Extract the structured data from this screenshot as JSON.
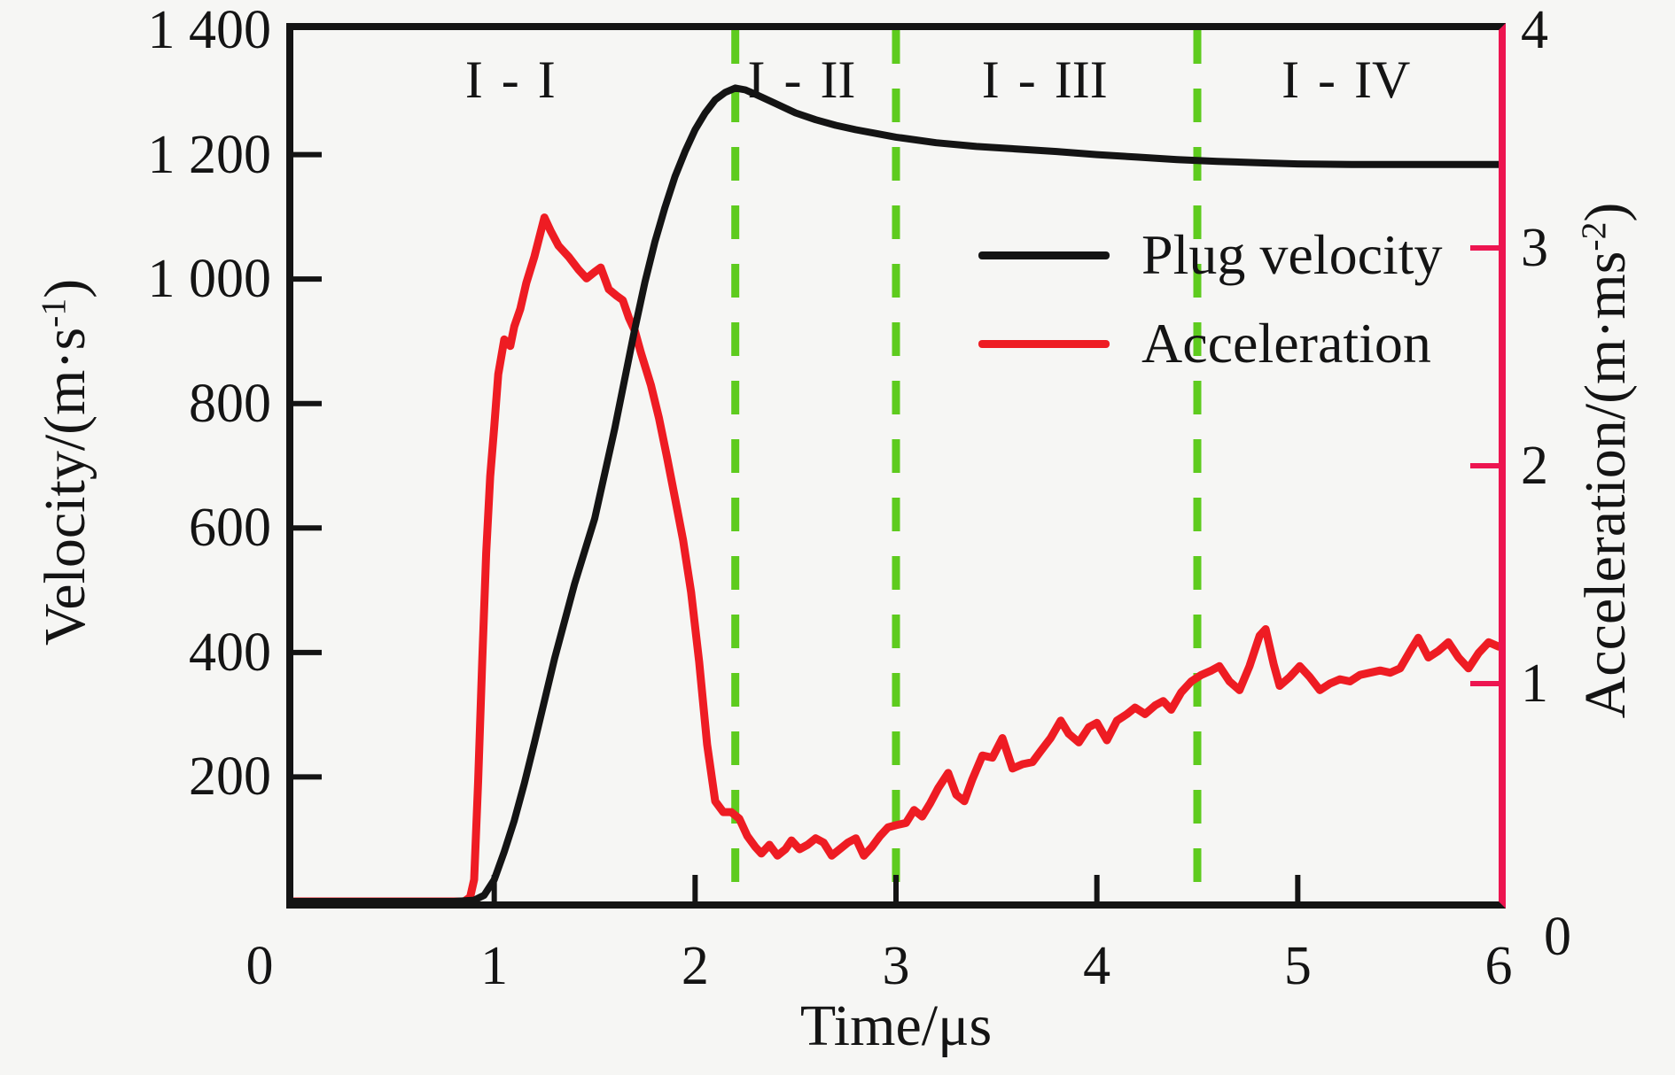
{
  "chart_data": {
    "type": "line",
    "title": "",
    "xlabel": "Time/μs",
    "ylabel_left": {
      "prefix": "Velocity/(m·s",
      "sup": "-1",
      "suffix": ")"
    },
    "ylabel_right": {
      "prefix": "Acceleration/(m·ms",
      "sup": "-2",
      "suffix": ")"
    },
    "x_range": [
      0,
      6
    ],
    "y_left_range": [
      0,
      1400
    ],
    "y_right_range": [
      0,
      4
    ],
    "grid": false,
    "legend_position": "upper right inside",
    "x_ticks": [
      {
        "v": 0,
        "label": "0",
        "dx": -38
      },
      {
        "v": 1,
        "label": "1"
      },
      {
        "v": 2,
        "label": "2"
      },
      {
        "v": 3,
        "label": "3"
      },
      {
        "v": 4,
        "label": "4"
      },
      {
        "v": 5,
        "label": "5"
      },
      {
        "v": 6,
        "label": "6"
      }
    ],
    "x_ticks_inner": [
      1,
      2,
      3,
      4,
      5
    ],
    "y_left_ticks": [
      {
        "v": 1400,
        "label": "1 400"
      },
      {
        "v": 1200,
        "label": "1 200"
      },
      {
        "v": 1000,
        "label": "1 000"
      },
      {
        "v": 800,
        "label": "800"
      },
      {
        "v": 600,
        "label": "600"
      },
      {
        "v": 400,
        "label": "400"
      },
      {
        "v": 200,
        "label": "200"
      }
    ],
    "y_left_tick_values_inner": [
      1200,
      1000,
      800,
      600,
      400,
      200
    ],
    "y_right_ticks": [
      {
        "v": 4,
        "label": "4"
      },
      {
        "v": 3,
        "label": "3"
      },
      {
        "v": 2,
        "label": "2"
      },
      {
        "v": 1,
        "label": "1"
      },
      {
        "v": 0,
        "label": "0",
        "dy": 40,
        "dx": 26
      }
    ],
    "y_right_tick_values_inner": [
      3,
      2,
      1
    ],
    "dashed_vlines": [
      2.2,
      3.0,
      4.5
    ],
    "region_labels": [
      {
        "label": "I - I",
        "t": 1.08
      },
      {
        "label": "I - II",
        "t": 2.53
      },
      {
        "label": "I - III",
        "t": 3.74
      },
      {
        "label": "I - IV",
        "t": 5.24
      }
    ],
    "legend": [
      {
        "label": "Plug velocity",
        "color": "#141414"
      },
      {
        "label": "Acceleration",
        "color": "#ee1c23"
      }
    ],
    "colors": {
      "velocity": "#141414",
      "acceleration": "#ee1c23",
      "right_axis": "#ed1550",
      "dashed_line": "#5ecb1e",
      "axis": "#141414",
      "background": "#f6f6f4"
    },
    "series": [
      {
        "name": "Plug velocity",
        "axis": "left",
        "color": "#141414",
        "width": 8,
        "points": [
          [
            0,
            0
          ],
          [
            0.5,
            0
          ],
          [
            0.8,
            0
          ],
          [
            0.9,
            2
          ],
          [
            0.95,
            10
          ],
          [
            1.0,
            35
          ],
          [
            1.05,
            80
          ],
          [
            1.1,
            130
          ],
          [
            1.15,
            190
          ],
          [
            1.2,
            255
          ],
          [
            1.3,
            390
          ],
          [
            1.4,
            510
          ],
          [
            1.5,
            615
          ],
          [
            1.6,
            760
          ],
          [
            1.7,
            920
          ],
          [
            1.75,
            995
          ],
          [
            1.8,
            1060
          ],
          [
            1.85,
            1115
          ],
          [
            1.9,
            1165
          ],
          [
            1.95,
            1205
          ],
          [
            2.0,
            1240
          ],
          [
            2.05,
            1267
          ],
          [
            2.1,
            1288
          ],
          [
            2.15,
            1300
          ],
          [
            2.2,
            1307
          ],
          [
            2.25,
            1304
          ],
          [
            2.3,
            1297
          ],
          [
            2.4,
            1282
          ],
          [
            2.5,
            1267
          ],
          [
            2.6,
            1256
          ],
          [
            2.7,
            1247
          ],
          [
            2.8,
            1240
          ],
          [
            2.9,
            1234
          ],
          [
            3.0,
            1228
          ],
          [
            3.2,
            1219
          ],
          [
            3.4,
            1213
          ],
          [
            3.6,
            1209
          ],
          [
            3.8,
            1205
          ],
          [
            4.0,
            1200
          ],
          [
            4.2,
            1196
          ],
          [
            4.4,
            1192
          ],
          [
            4.6,
            1189
          ],
          [
            4.8,
            1187
          ],
          [
            5.0,
            1185
          ],
          [
            5.3,
            1184
          ],
          [
            5.6,
            1184
          ],
          [
            6.0,
            1184
          ]
        ]
      },
      {
        "name": "Acceleration",
        "axis": "right",
        "color": "#ee1c23",
        "width": 9,
        "points": [
          [
            0,
            0
          ],
          [
            0.5,
            0
          ],
          [
            0.85,
            0
          ],
          [
            0.88,
            0.02
          ],
          [
            0.9,
            0.1
          ],
          [
            0.92,
            0.55
          ],
          [
            0.94,
            1.1
          ],
          [
            0.96,
            1.6
          ],
          [
            0.98,
            1.95
          ],
          [
            1.0,
            2.18
          ],
          [
            1.02,
            2.42
          ],
          [
            1.05,
            2.58
          ],
          [
            1.08,
            2.55
          ],
          [
            1.1,
            2.64
          ],
          [
            1.13,
            2.72
          ],
          [
            1.16,
            2.84
          ],
          [
            1.2,
            2.96
          ],
          [
            1.25,
            3.14
          ],
          [
            1.28,
            3.08
          ],
          [
            1.32,
            3.01
          ],
          [
            1.37,
            2.96
          ],
          [
            1.42,
            2.9
          ],
          [
            1.46,
            2.86
          ],
          [
            1.5,
            2.89
          ],
          [
            1.53,
            2.91
          ],
          [
            1.57,
            2.81
          ],
          [
            1.61,
            2.78
          ],
          [
            1.64,
            2.76
          ],
          [
            1.67,
            2.68
          ],
          [
            1.7,
            2.62
          ],
          [
            1.73,
            2.52
          ],
          [
            1.78,
            2.37
          ],
          [
            1.82,
            2.22
          ],
          [
            1.86,
            2.04
          ],
          [
            1.9,
            1.85
          ],
          [
            1.94,
            1.66
          ],
          [
            1.98,
            1.42
          ],
          [
            2.02,
            1.1
          ],
          [
            2.06,
            0.72
          ],
          [
            2.1,
            0.46
          ],
          [
            2.14,
            0.41
          ],
          [
            2.18,
            0.41
          ],
          [
            2.22,
            0.38
          ],
          [
            2.26,
            0.3
          ],
          [
            2.3,
            0.25
          ],
          [
            2.33,
            0.22
          ],
          [
            2.37,
            0.26
          ],
          [
            2.41,
            0.21
          ],
          [
            2.45,
            0.24
          ],
          [
            2.48,
            0.28
          ],
          [
            2.52,
            0.24
          ],
          [
            2.56,
            0.26
          ],
          [
            2.6,
            0.29
          ],
          [
            2.64,
            0.27
          ],
          [
            2.68,
            0.21
          ],
          [
            2.72,
            0.24
          ],
          [
            2.76,
            0.27
          ],
          [
            2.8,
            0.29
          ],
          [
            2.84,
            0.21
          ],
          [
            2.88,
            0.25
          ],
          [
            2.92,
            0.3
          ],
          [
            2.96,
            0.34
          ],
          [
            3.0,
            0.35
          ],
          [
            3.05,
            0.36
          ],
          [
            3.09,
            0.42
          ],
          [
            3.13,
            0.39
          ],
          [
            3.17,
            0.45
          ],
          [
            3.21,
            0.52
          ],
          [
            3.26,
            0.59
          ],
          [
            3.3,
            0.49
          ],
          [
            3.34,
            0.46
          ],
          [
            3.38,
            0.56
          ],
          [
            3.43,
            0.67
          ],
          [
            3.48,
            0.66
          ],
          [
            3.53,
            0.75
          ],
          [
            3.58,
            0.61
          ],
          [
            3.63,
            0.63
          ],
          [
            3.68,
            0.64
          ],
          [
            3.72,
            0.69
          ],
          [
            3.77,
            0.75
          ],
          [
            3.82,
            0.83
          ],
          [
            3.86,
            0.77
          ],
          [
            3.91,
            0.73
          ],
          [
            3.96,
            0.8
          ],
          [
            4.0,
            0.82
          ],
          [
            4.05,
            0.74
          ],
          [
            4.1,
            0.83
          ],
          [
            4.15,
            0.86
          ],
          [
            4.19,
            0.89
          ],
          [
            4.24,
            0.86
          ],
          [
            4.29,
            0.9
          ],
          [
            4.33,
            0.92
          ],
          [
            4.37,
            0.88
          ],
          [
            4.42,
            0.96
          ],
          [
            4.47,
            1.01
          ],
          [
            4.52,
            1.04
          ],
          [
            4.57,
            1.06
          ],
          [
            4.61,
            1.08
          ],
          [
            4.66,
            1.01
          ],
          [
            4.71,
            0.97
          ],
          [
            4.76,
            1.08
          ],
          [
            4.81,
            1.22
          ],
          [
            4.84,
            1.25
          ],
          [
            4.88,
            1.09
          ],
          [
            4.91,
            0.99
          ],
          [
            4.96,
            1.03
          ],
          [
            5.01,
            1.08
          ],
          [
            5.06,
            1.03
          ],
          [
            5.11,
            0.97
          ],
          [
            5.16,
            1.0
          ],
          [
            5.21,
            1.02
          ],
          [
            5.26,
            1.01
          ],
          [
            5.31,
            1.04
          ],
          [
            5.36,
            1.05
          ],
          [
            5.41,
            1.06
          ],
          [
            5.46,
            1.05
          ],
          [
            5.51,
            1.07
          ],
          [
            5.56,
            1.15
          ],
          [
            5.6,
            1.21
          ],
          [
            5.65,
            1.12
          ],
          [
            5.7,
            1.15
          ],
          [
            5.75,
            1.19
          ],
          [
            5.8,
            1.12
          ],
          [
            5.85,
            1.07
          ],
          [
            5.9,
            1.14
          ],
          [
            5.95,
            1.19
          ],
          [
            6.0,
            1.17
          ]
        ]
      }
    ]
  }
}
